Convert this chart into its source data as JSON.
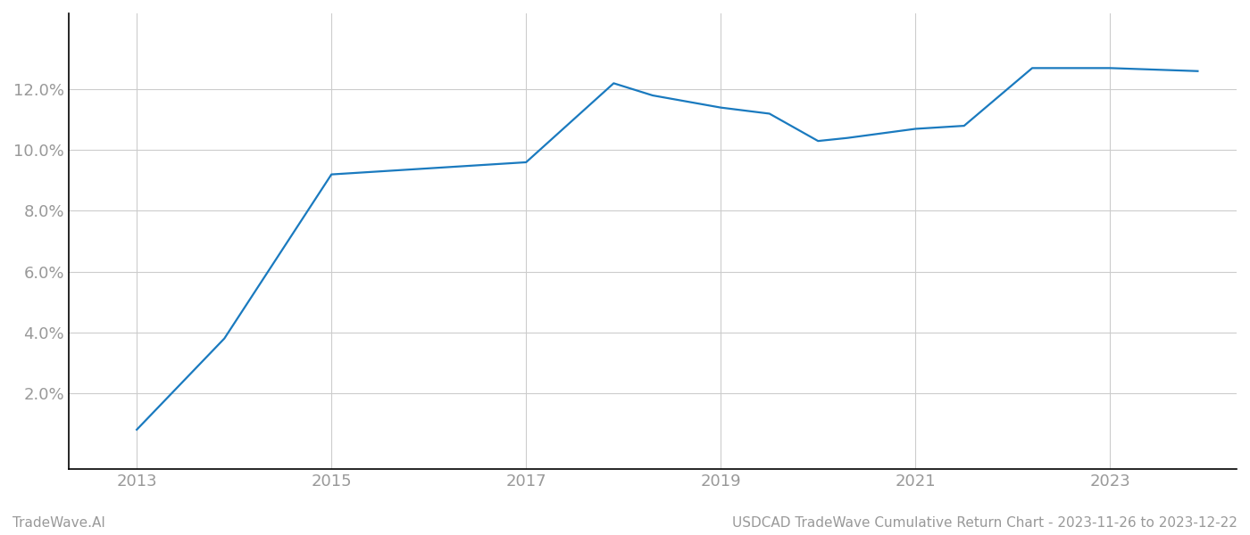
{
  "x_values": [
    2013,
    2013.9,
    2015.0,
    2015.5,
    2016.0,
    2017.0,
    2017.9,
    2018.3,
    2019.0,
    2019.5,
    2020.0,
    2020.3,
    2021.0,
    2021.5,
    2022.2,
    2023.0,
    2023.9
  ],
  "y_values": [
    0.008,
    0.038,
    0.092,
    0.093,
    0.094,
    0.096,
    0.122,
    0.118,
    0.114,
    0.112,
    0.103,
    0.104,
    0.107,
    0.108,
    0.127,
    0.127,
    0.126
  ],
  "line_color": "#1a7abf",
  "line_width": 1.6,
  "background_color": "#ffffff",
  "grid_color": "#cccccc",
  "xlim": [
    2012.3,
    2024.3
  ],
  "ylim": [
    -0.005,
    0.145
  ],
  "yticks": [
    0.02,
    0.04,
    0.06,
    0.08,
    0.1,
    0.12
  ],
  "xticks": [
    2013,
    2015,
    2017,
    2019,
    2021,
    2023
  ],
  "footer_left": "TradeWave.AI",
  "footer_right": "USDCAD TradeWave Cumulative Return Chart - 2023-11-26 to 2023-12-22",
  "tick_color": "#999999",
  "footer_color": "#999999",
  "spine_color": "#000000",
  "left_spine_color": "#000000",
  "bottom_spine_color": "#000000"
}
